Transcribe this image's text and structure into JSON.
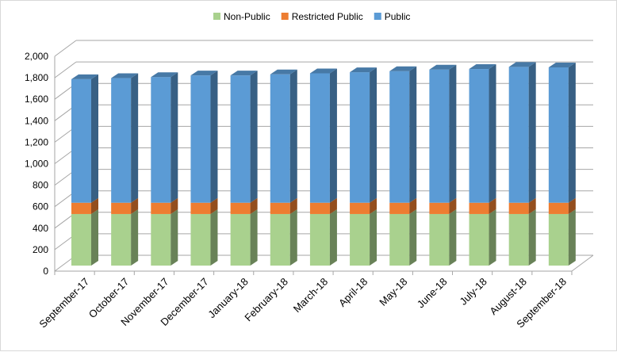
{
  "chart_data": {
    "type": "bar",
    "stacked": true,
    "three_d": true,
    "title": "",
    "xlabel": "",
    "ylabel": "",
    "ylim": [
      0,
      2000
    ],
    "yticks": [
      "0",
      "200",
      "400",
      "600",
      "800",
      "1,000",
      "1,200",
      "1,400",
      "1,600",
      "1,800",
      "2,000"
    ],
    "grid": true,
    "legend_position": "top",
    "categories": [
      "September-17",
      "October-17",
      "November-17",
      "December-17",
      "January-18",
      "February-18",
      "March-18",
      "April-18",
      "May-18",
      "June-18",
      "July-18",
      "August-18",
      "September-18"
    ],
    "series": [
      {
        "name": "Non-Public",
        "color": "#a9d18e",
        "values": [
          480,
          480,
          480,
          480,
          480,
          480,
          480,
          480,
          480,
          480,
          480,
          480,
          480
        ]
      },
      {
        "name": "Restricted Public",
        "color": "#ed7d31",
        "values": [
          105,
          105,
          105,
          105,
          105,
          105,
          105,
          105,
          105,
          105,
          105,
          105,
          105
        ]
      },
      {
        "name": "Public",
        "color": "#5b9bd5",
        "values": [
          1150,
          1160,
          1170,
          1185,
          1185,
          1195,
          1205,
          1215,
          1225,
          1240,
          1245,
          1265,
          1260
        ]
      }
    ]
  }
}
